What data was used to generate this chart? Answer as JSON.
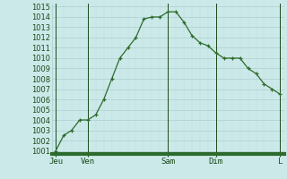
{
  "y_values": [
    1001,
    1002.5,
    1003,
    1004,
    1004,
    1004.5,
    1006,
    1008,
    1010,
    1011,
    1012,
    1013.8,
    1014,
    1014,
    1014.5,
    1014.5,
    1013.5,
    1012.2,
    1011.5,
    1011.2,
    1010.5,
    1010,
    1010,
    1010,
    1009,
    1008.5,
    1007.5,
    1007,
    1006.5
  ],
  "x_tick_positions": [
    0,
    4,
    14,
    20,
    28
  ],
  "x_tick_labels": [
    "Jeu",
    "Ven",
    "Sam",
    "Dim",
    "L"
  ],
  "y_min": 1001,
  "y_max": 1015,
  "bg_color": "#cce9e9",
  "line_color": "#2d6a2d",
  "grid_major_color": "#aacece",
  "grid_minor_color": "#bbdddd",
  "dark_line_color": "#1a4a1a",
  "text_color": "#1a4a1a",
  "bottom_bar_color": "#2d6a2d",
  "marker": "+"
}
